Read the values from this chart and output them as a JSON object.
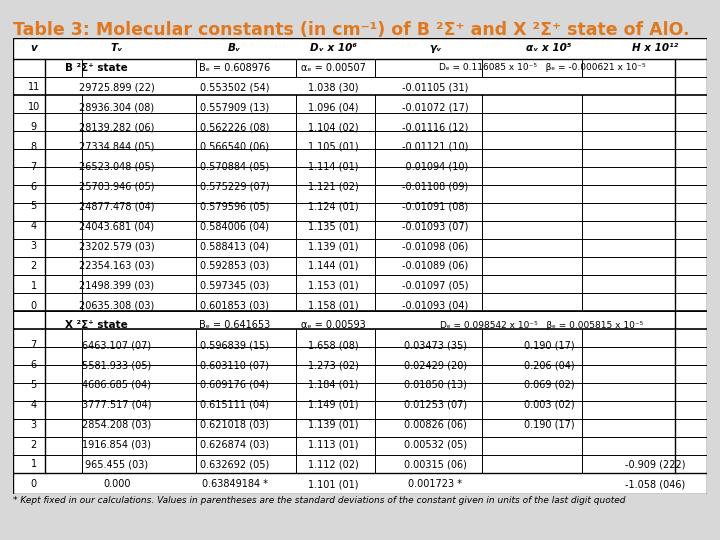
{
  "title": "Table 3: Molecular constants (in cm⁻¹) of B ²Σ⁺ and X ²Σ⁺ state of AlO.",
  "title_color": "#e07820",
  "bg_color": "#d8d8d8",
  "table_bg": "#ffffff",
  "header_row": [
    "v",
    "Tᵥ",
    "Bᵥ",
    "Dᵥ x 10⁶",
    "γᵥ",
    "αᵥ x 10⁵",
    "H x 10¹²"
  ],
  "B_rows": [
    [
      "11",
      "29725.899 (22)",
      "0.553502 (54)",
      "1.038 (30)",
      "-0.01105 (31)",
      "",
      ""
    ],
    [
      "10",
      "28936.304 (08)",
      "0.557909 (13)",
      "1.096 (04)",
      "-0.01072 (17)",
      "",
      ""
    ],
    [
      "9",
      "28139.282 (06)",
      "0.562226 (08)",
      "1.104 (02)",
      "-0.01116 (12)",
      "",
      ""
    ],
    [
      "8",
      "27334.844 (05)",
      "0.566540 (06)",
      "1.105 (01)",
      "-0.01121 (10)",
      "",
      ""
    ],
    [
      "7",
      "26523.048 (05)",
      "0.570884 (05)",
      "1.114 (01)",
      "-0.01094 (10)",
      "",
      ""
    ],
    [
      "6",
      "25703.946 (05)",
      "0.575229 (07)",
      "1.121 (02)",
      "-0.01108 (09)",
      "",
      ""
    ],
    [
      "5",
      "24877.478 (04)",
      "0.579596 (05)",
      "1.124 (01)",
      "-0.01091 (08)",
      "",
      ""
    ],
    [
      "4",
      "24043.681 (04)",
      "0.584006 (04)",
      "1.135 (01)",
      "-0.01093 (07)",
      "",
      ""
    ],
    [
      "3",
      "23202.579 (03)",
      "0.588413 (04)",
      "1.139 (01)",
      "-0.01098 (06)",
      "",
      ""
    ],
    [
      "2",
      "22354.163 (03)",
      "0.592853 (03)",
      "1.144 (01)",
      "-0.01089 (06)",
      "",
      ""
    ],
    [
      "1",
      "21498.399 (03)",
      "0.597345 (03)",
      "1.153 (01)",
      "-0.01097 (05)",
      "",
      ""
    ],
    [
      "0",
      "20635.308 (03)",
      "0.601853 (03)",
      "1.158 (01)",
      "-0.01093 (04)",
      "",
      ""
    ]
  ],
  "X_rows": [
    [
      "7",
      "6463.107 (07)",
      "0.596839 (15)",
      "1.658 (08)",
      "0.03473 (35)",
      "0.190 (17)",
      ""
    ],
    [
      "6",
      "5581.933 (05)",
      "0.603110 (07)",
      "1.273 (02)",
      "0.02429 (20)",
      "0.206 (04)",
      ""
    ],
    [
      "5",
      "4686.685 (04)",
      "0.609176 (04)",
      "1.184 (01)",
      "0.01850 (13)",
      "0.069 (02)",
      ""
    ],
    [
      "4",
      "3777.517 (04)",
      "0.615111 (04)",
      "1.149 (01)",
      "0.01253 (07)",
      "0.003 (02)",
      ""
    ],
    [
      "3",
      "2854.208 (03)",
      "0.621018 (03)",
      "1.139 (01)",
      "0.00826 (06)",
      "0.190 (17)",
      ""
    ],
    [
      "2",
      "1916.854 (03)",
      "0.626874 (03)",
      "1.113 (01)",
      "0.00532 (05)",
      "",
      ""
    ],
    [
      "1",
      "965.455 (03)",
      "0.632692 (05)",
      "1.112 (02)",
      "0.00315 (06)",
      "",
      "-0.909 (222)"
    ],
    [
      "0",
      "0.000",
      "0.63849184 *",
      "1.101 (01)",
      "0.001723 *",
      "",
      "-1.058 (046)"
    ]
  ],
  "footnote": "* Kept fixed in our calculations. Values in parentheses are the standard deviations of the constant given in units of the last digit quoted"
}
